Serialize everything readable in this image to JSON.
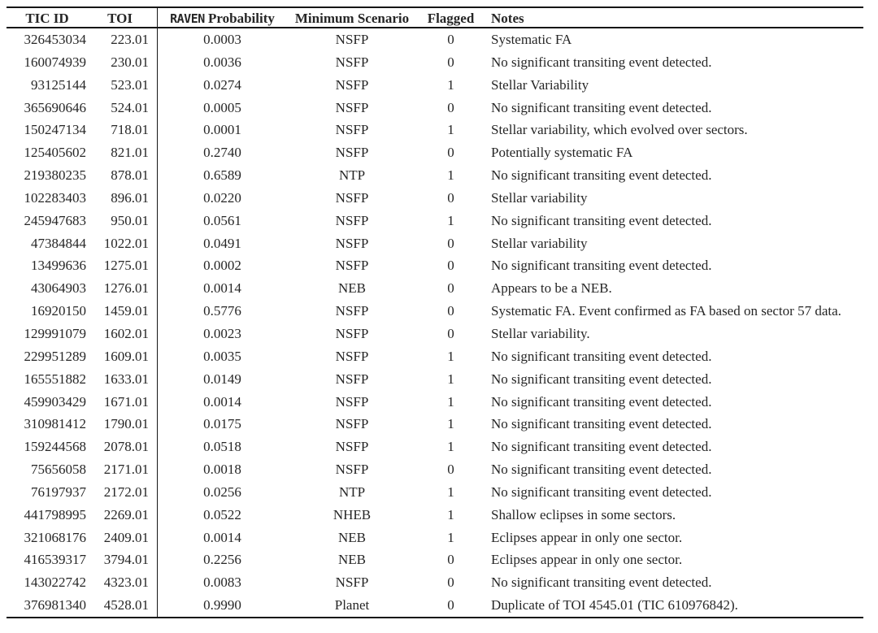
{
  "colors": {
    "text": "#262626",
    "rule": "#151515",
    "background": "#ffffff"
  },
  "table": {
    "header": {
      "tic_id": "TIC ID",
      "toi": "TOI",
      "raven_wordmark": "RAVEN",
      "raven_rest": "Probability",
      "minimum_scenario": "Minimum Scenario",
      "flagged": "Flagged",
      "notes": "Notes"
    },
    "rows": [
      [
        "326453034",
        "223.01",
        "0.0003",
        "NSFP",
        "0",
        "Systematic FA"
      ],
      [
        "160074939",
        "230.01",
        "0.0036",
        "NSFP",
        "0",
        "No significant transiting event detected."
      ],
      [
        "93125144",
        "523.01",
        "0.0274",
        "NSFP",
        "1",
        "Stellar Variability"
      ],
      [
        "365690646",
        "524.01",
        "0.0005",
        "NSFP",
        "0",
        "No significant transiting event detected."
      ],
      [
        "150247134",
        "718.01",
        "0.0001",
        "NSFP",
        "1",
        "Stellar variability, which evolved over sectors."
      ],
      [
        "125405602",
        "821.01",
        "0.2740",
        "NSFP",
        "0",
        "Potentially systematic FA"
      ],
      [
        "219380235",
        "878.01",
        "0.6589",
        "NTP",
        "1",
        "No significant transiting event detected."
      ],
      [
        "102283403",
        "896.01",
        "0.0220",
        "NSFP",
        "0",
        "Stellar variability"
      ],
      [
        "245947683",
        "950.01",
        "0.0561",
        "NSFP",
        "1",
        "No significant transiting event detected."
      ],
      [
        "47384844",
        "1022.01",
        "0.0491",
        "NSFP",
        "0",
        "Stellar variability"
      ],
      [
        "13499636",
        "1275.01",
        "0.0002",
        "NSFP",
        "0",
        "No significant transiting event detected."
      ],
      [
        "43064903",
        "1276.01",
        "0.0014",
        "NEB",
        "0",
        "Appears to be a NEB."
      ],
      [
        "16920150",
        "1459.01",
        "0.5776",
        "NSFP",
        "0",
        "Systematic FA. Event confirmed as FA based on sector 57 data."
      ],
      [
        "129991079",
        "1602.01",
        "0.0023",
        "NSFP",
        "0",
        "Stellar variability."
      ],
      [
        "229951289",
        "1609.01",
        "0.0035",
        "NSFP",
        "1",
        "No significant transiting event detected."
      ],
      [
        "165551882",
        "1633.01",
        "0.0149",
        "NSFP",
        "1",
        "No significant transiting event detected."
      ],
      [
        "459903429",
        "1671.01",
        "0.0014",
        "NSFP",
        "1",
        "No significant transiting event detected."
      ],
      [
        "310981412",
        "1790.01",
        "0.0175",
        "NSFP",
        "1",
        "No significant transiting event detected."
      ],
      [
        "159244568",
        "2078.01",
        "0.0518",
        "NSFP",
        "1",
        "No significant transiting event detected."
      ],
      [
        "75656058",
        "2171.01",
        "0.0018",
        "NSFP",
        "0",
        "No significant transiting event detected."
      ],
      [
        "76197937",
        "2172.01",
        "0.0256",
        "NTP",
        "1",
        "No significant transiting event detected."
      ],
      [
        "441798995",
        "2269.01",
        "0.0522",
        "NHEB",
        "1",
        "Shallow eclipses in some sectors."
      ],
      [
        "321068176",
        "2409.01",
        "0.0014",
        "NEB",
        "1",
        "Eclipses appear in only one sector."
      ],
      [
        "416539317",
        "3794.01",
        "0.2256",
        "NEB",
        "0",
        "Eclipses appear in only one sector."
      ],
      [
        "143022742",
        "4323.01",
        "0.0083",
        "NSFP",
        "0",
        "No significant transiting event detected."
      ],
      [
        "376981340",
        "4528.01",
        "0.9990",
        "Planet",
        "0",
        "Duplicate of TOI 4545.01 (TIC 610976842)."
      ]
    ]
  }
}
